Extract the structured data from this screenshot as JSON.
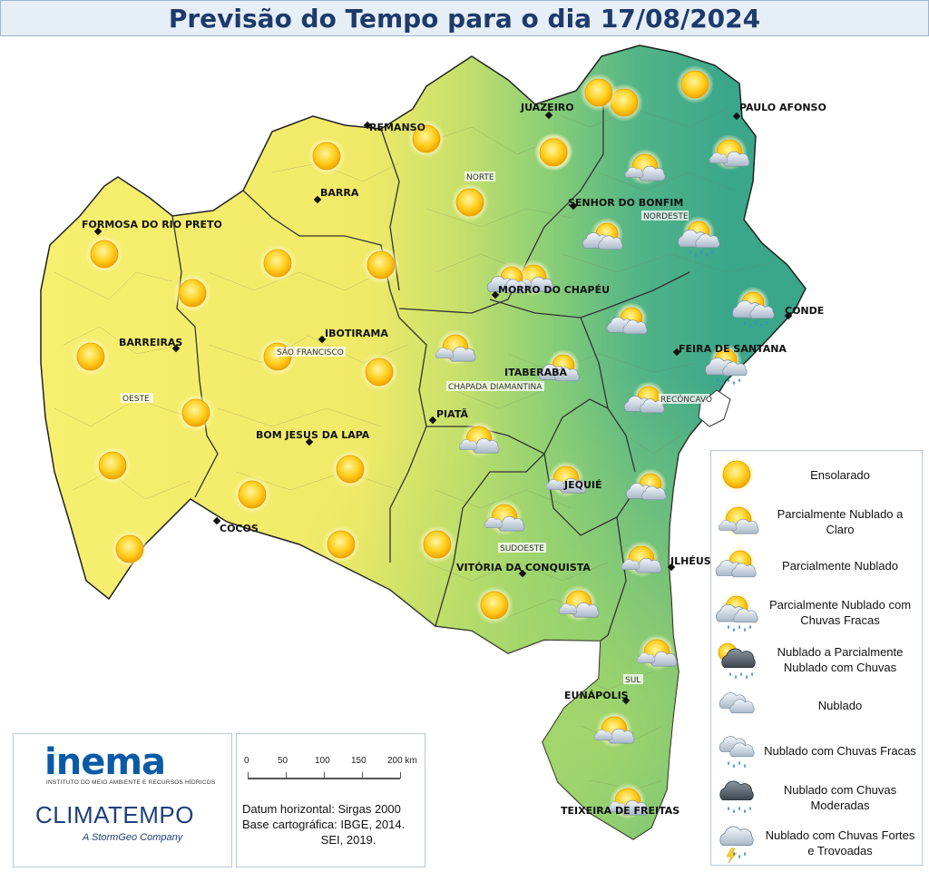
{
  "title": "Previsão do Tempo para o dia 17/08/2024",
  "colors": {
    "dry": "#f4ec6a",
    "mid": "#b7df6a",
    "wet": "#45b18a",
    "sea": "#ffffff",
    "border": "#333333",
    "title": "#1d3a6b"
  },
  "cities": [
    {
      "id": "remanso",
      "name": "REMANSO"
    },
    {
      "id": "juazeiro",
      "name": "JUAZEIRO"
    },
    {
      "id": "paulo-afonso",
      "name": "PAULO AFONSO"
    },
    {
      "id": "barra",
      "name": "BARRA"
    },
    {
      "id": "senhor-do-bonfim",
      "name": "SENHOR DO BONFIM"
    },
    {
      "id": "formosa-do-rio-preto",
      "name": "FORMOSA DO RIO PRETO"
    },
    {
      "id": "morro-do-chapeu",
      "name": "MORRO DO CHAPÉU"
    },
    {
      "id": "conde",
      "name": "CONDE"
    },
    {
      "id": "ibotirama",
      "name": "IBOTIRAMA"
    },
    {
      "id": "barreiras",
      "name": "BARREIRAS"
    },
    {
      "id": "feira-de-santana",
      "name": "FEIRA DE SANTANA"
    },
    {
      "id": "itaberaba",
      "name": "ITABERABA"
    },
    {
      "id": "piata",
      "name": "PIATÃ"
    },
    {
      "id": "bom-jesus-da-lapa",
      "name": "BOM JESUS DA LAPA"
    },
    {
      "id": "jequie",
      "name": "JEQUIÉ"
    },
    {
      "id": "cocos",
      "name": "COCOS"
    },
    {
      "id": "ilheus",
      "name": "ILHÉUS"
    },
    {
      "id": "vitoria-da-conquista",
      "name": "VITÓRIA DA CONQUISTA"
    },
    {
      "id": "eunapolis",
      "name": "EUNÁPOLIS"
    },
    {
      "id": "teixeira-de-freitas",
      "name": "TEIXEIRA DE FREITAS"
    }
  ],
  "regions": [
    {
      "id": "norte",
      "name": "NORTE"
    },
    {
      "id": "nordeste",
      "name": "NORDESTE"
    },
    {
      "id": "sao-francisco",
      "name": "SÃO FRANCISCO"
    },
    {
      "id": "oeste",
      "name": "OESTE"
    },
    {
      "id": "chapada-diamantina",
      "name": "CHAPADA DIAMANTINA"
    },
    {
      "id": "reconcavo",
      "name": "RECÔNCAVO"
    },
    {
      "id": "sudoeste",
      "name": "SUDOESTE"
    },
    {
      "id": "sul",
      "name": "SUL"
    }
  ],
  "icons": [
    "sun",
    "sun",
    "sun",
    "sun",
    "sun",
    "sun",
    "sun",
    "sun",
    "sun",
    "sun",
    "sun",
    "sun",
    "sun",
    "sun",
    "sun",
    "sun",
    "sun",
    "sun",
    "sun",
    "sun",
    "sun",
    "sun",
    "sun",
    "partly-cloudy-light",
    "partly-cloudy-light",
    "partly-cloudy-light",
    "partly-cloudy-light",
    "partly-cloudy-light",
    "partly-cloudy-light",
    "partly-cloudy-light",
    "partly-cloudy-light",
    "partly-cloudy-light",
    "partly-cloudy-light",
    "partly-cloudy-light",
    "partly-cloudy-light",
    "partly-cloudy",
    "partly-cloudy",
    "partly-cloudy",
    "partly-cloudy",
    "partly-cloudy",
    "partly-cloudy",
    "partly-cloudy-rain",
    "partly-cloudy-rain",
    "partly-cloudy-rain"
  ],
  "legend": [
    {
      "icon": "sun",
      "label": "Ensolarado"
    },
    {
      "icon": "partly-cloudy-light",
      "label": "Parcialmente Nublado a Claro"
    },
    {
      "icon": "partly-cloudy",
      "label": "Parcialmente Nublado"
    },
    {
      "icon": "partly-cloudy-rain",
      "label": "Parcialmente Nublado com Chuvas Fracas"
    },
    {
      "icon": "cloudy-partly-rain",
      "label": "Nublado a Parcialmente Nublado com Chuvas"
    },
    {
      "icon": "cloudy",
      "label": "Nublado"
    },
    {
      "icon": "cloudy-light-rain",
      "label": "Nublado com Chuvas Fracas"
    },
    {
      "icon": "cloudy-moderate-rain",
      "label": "Nublado com Chuvas Moderadas"
    },
    {
      "icon": "storm",
      "label": "Nublado com Chuvas Fortes e Trovoadas"
    }
  ],
  "logos": {
    "inema": "inema",
    "inema_sub": "INSTITUTO DO MEIO AMBIENTE E RECURSOS HÍDRICOS",
    "climatempo": "CLIMATEMPO",
    "stormgeo": "A StormGeo Company"
  },
  "scale": {
    "ticks": [
      "0",
      "50",
      "100",
      "150",
      "200 km"
    ],
    "text": "Datum horizontal: Sirgas 2000\nBase cartográfica: IBGE, 2014.\n                        SEI, 2019."
  }
}
